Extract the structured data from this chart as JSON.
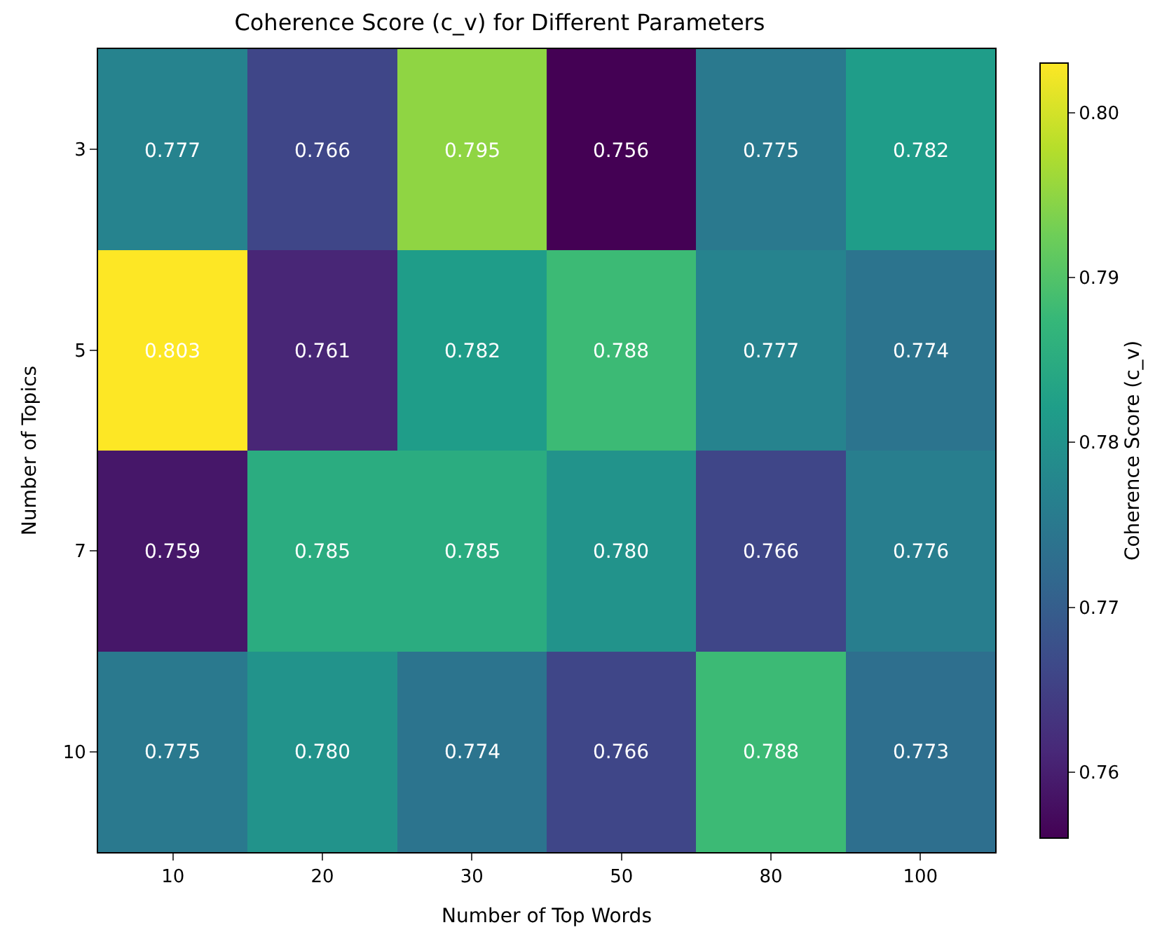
{
  "chart_data": {
    "type": "heatmap",
    "title": "Coherence Score (c_v) for Different Parameters",
    "xlabel": "Number of Top Words",
    "ylabel": "Number of Topics",
    "clabel": "Coherence Score (c_v)",
    "categories": [
      "10",
      "20",
      "30",
      "50",
      "80",
      "100"
    ],
    "y_categories": [
      "3",
      "5",
      "7",
      "10"
    ],
    "cells": [
      [
        0.777,
        0.766,
        0.795,
        0.756,
        0.775,
        0.782
      ],
      [
        0.803,
        0.761,
        0.782,
        0.788,
        0.777,
        0.774
      ],
      [
        0.759,
        0.785,
        0.785,
        0.78,
        0.766,
        0.776
      ],
      [
        0.775,
        0.78,
        0.774,
        0.766,
        0.788,
        0.773
      ]
    ],
    "cell_labels": [
      [
        "0.777",
        "0.766",
        "0.795",
        "0.756",
        "0.775",
        "0.782"
      ],
      [
        "0.803",
        "0.761",
        "0.782",
        "0.788",
        "0.777",
        "0.774"
      ],
      [
        "0.759",
        "0.785",
        "0.785",
        "0.780",
        "0.766",
        "0.776"
      ],
      [
        "0.775",
        "0.780",
        "0.774",
        "0.766",
        "0.788",
        "0.773"
      ]
    ],
    "clim": [
      0.756,
      0.803
    ],
    "cticks": [
      {
        "value": 0.76,
        "label": "0.76"
      },
      {
        "value": 0.77,
        "label": "0.77"
      },
      {
        "value": 0.78,
        "label": "0.78"
      },
      {
        "value": 0.79,
        "label": "0.79"
      },
      {
        "value": 0.8,
        "label": "0.80"
      }
    ]
  }
}
